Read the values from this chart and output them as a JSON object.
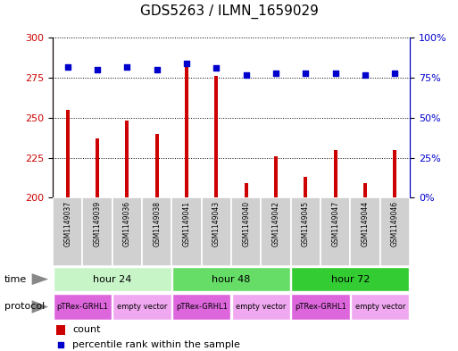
{
  "title": "GDS5263 / ILMN_1659029",
  "samples": [
    "GSM1149037",
    "GSM1149039",
    "GSM1149036",
    "GSM1149038",
    "GSM1149041",
    "GSM1149043",
    "GSM1149040",
    "GSM1149042",
    "GSM1149045",
    "GSM1149047",
    "GSM1149044",
    "GSM1149046"
  ],
  "counts": [
    255,
    237,
    248,
    240,
    282,
    276,
    209,
    226,
    213,
    230,
    209,
    230
  ],
  "percentiles": [
    82,
    80,
    82,
    80,
    84,
    81,
    77,
    78,
    78,
    78,
    77,
    78
  ],
  "ylim_left": [
    200,
    300
  ],
  "ylim_right": [
    0,
    100
  ],
  "yticks_left": [
    200,
    225,
    250,
    275,
    300
  ],
  "yticks_right": [
    0,
    25,
    50,
    75,
    100
  ],
  "time_groups": [
    {
      "label": "hour 24",
      "start": 0,
      "end": 3,
      "color": "#c8f5c8"
    },
    {
      "label": "hour 48",
      "start": 4,
      "end": 7,
      "color": "#66dd66"
    },
    {
      "label": "hour 72",
      "start": 8,
      "end": 11,
      "color": "#33cc33"
    }
  ],
  "protocol_groups": [
    {
      "label": "pTRex-GRHL1",
      "start": 0,
      "end": 1,
      "color": "#dd66dd"
    },
    {
      "label": "empty vector",
      "start": 2,
      "end": 3,
      "color": "#f0a8f0"
    },
    {
      "label": "pTRex-GRHL1",
      "start": 4,
      "end": 5,
      "color": "#dd66dd"
    },
    {
      "label": "empty vector",
      "start": 6,
      "end": 7,
      "color": "#f0a8f0"
    },
    {
      "label": "pTRex-GRHL1",
      "start": 8,
      "end": 9,
      "color": "#dd66dd"
    },
    {
      "label": "empty vector",
      "start": 10,
      "end": 11,
      "color": "#f0a8f0"
    }
  ],
  "bar_color": "#cc0000",
  "dot_color": "#0000cc",
  "bar_width": 0.12,
  "grid_color": "#000000",
  "sample_box_color": "#d0d0d0",
  "background_color": "#ffffff",
  "arrow_color": "#888888"
}
